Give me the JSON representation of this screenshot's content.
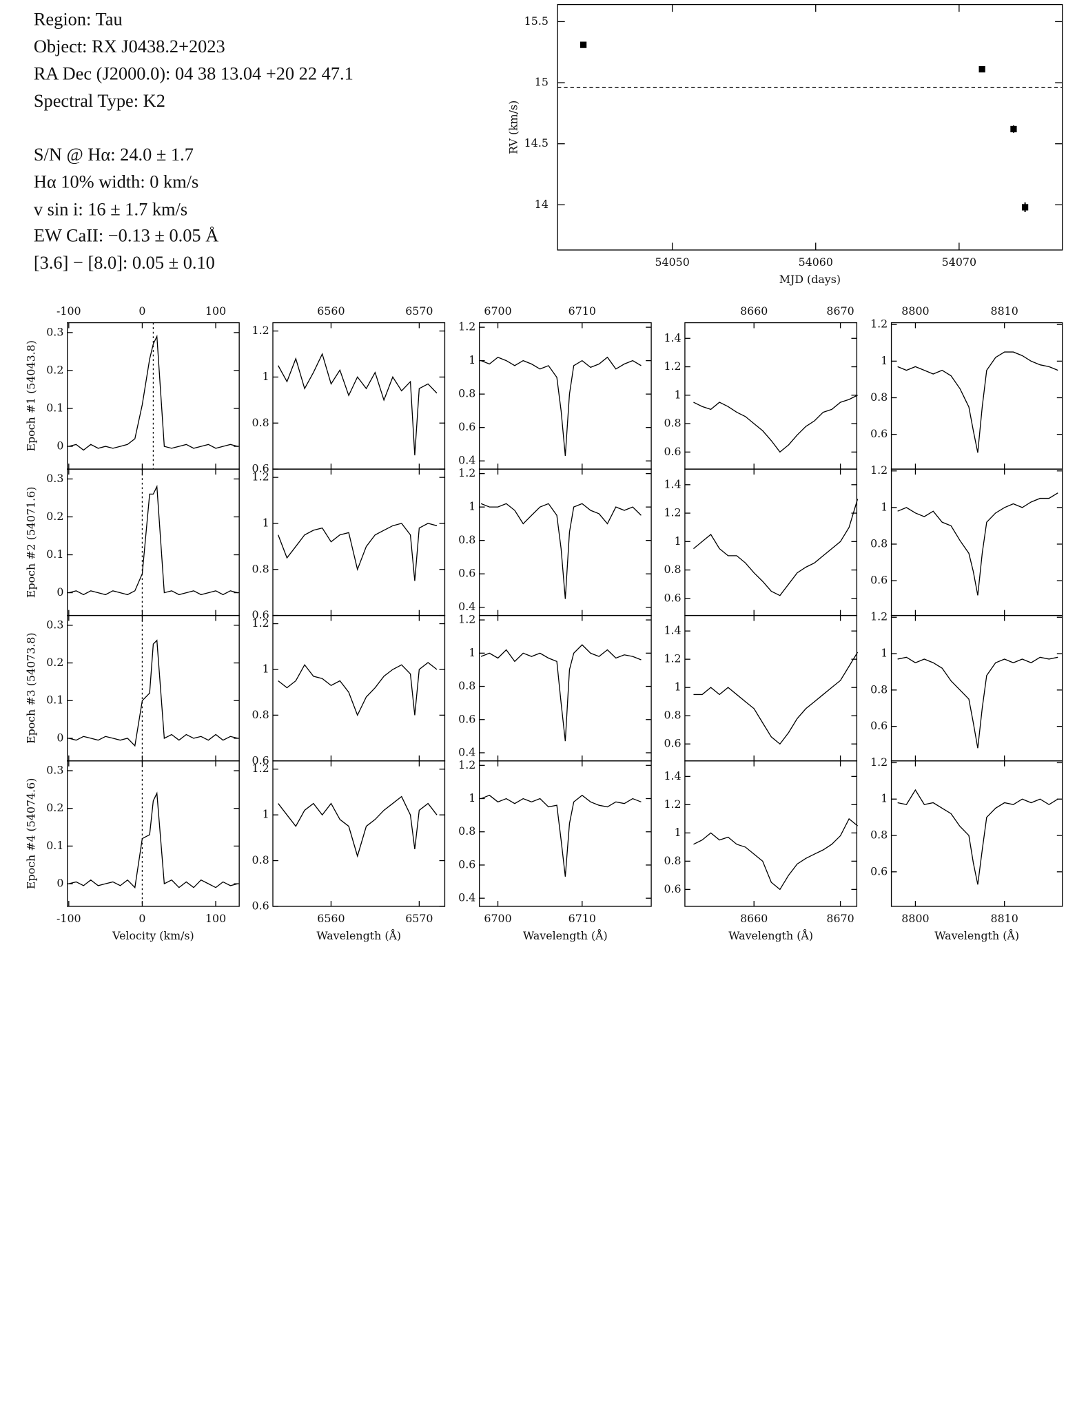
{
  "info": {
    "lines": [
      "Region: Tau",
      "Object: RX J0438.2+2023",
      "RA Dec (J2000.0): 04 38 13.04 +20 22 47.1",
      "Spectral Type: K2",
      "S/N @ Hα: 24.0 ± 1.7",
      "Hα 10% width: 0 km/s",
      "v sin i: 16 ± 1.7 km/s",
      "EW CaII: −0.13 ± 0.05 Å",
      "[3.6] − [8.0]: 0.05 ± 0.10"
    ]
  },
  "chart_data": [
    {
      "type": "scatter",
      "xlabel": "MJD (days)",
      "ylabel": "RV (km/s)",
      "x": [
        54043.8,
        54071.6,
        54073.8,
        54074.6
      ],
      "values": [
        15.31,
        15.11,
        14.62,
        13.98
      ],
      "errors": [
        0.02,
        0.02,
        0.03,
        0.04
      ],
      "reference_line": 14.96,
      "xlim": [
        54042.0,
        54077.2
      ],
      "xticks": [
        54050,
        54060,
        54070
      ],
      "ylim": [
        13.63,
        15.64
      ],
      "yticks": [
        14,
        14.5,
        15,
        15.5
      ],
      "color": "#000000"
    },
    {
      "type": "line",
      "ylabel": "Epoch #1 (54043.8)",
      "reference_line": 15,
      "x": [
        -100,
        -90,
        -80,
        -70,
        -60,
        -50,
        -40,
        -30,
        -20,
        -10,
        0,
        10,
        15,
        20,
        30,
        40,
        50,
        60,
        70,
        80,
        90,
        100,
        110,
        120,
        130
      ],
      "values": [
        0,
        0.005,
        -0.01,
        0.005,
        -0.005,
        0,
        -0.005,
        0,
        0.005,
        0.02,
        0.11,
        0.23,
        0.27,
        0.29,
        0,
        -0.005,
        0,
        0.005,
        -0.005,
        0,
        0.005,
        -0.005,
        0,
        0.005,
        0
      ],
      "xlim": [
        -102,
        132
      ],
      "xticks": [
        -100,
        0,
        100
      ],
      "ylim": [
        -0.06,
        0.326
      ],
      "yticks": [
        0,
        0.1,
        0.2,
        0.3
      ]
    },
    {
      "type": "line",
      "x": [
        6554,
        6555,
        6556,
        6557,
        6558,
        6559,
        6560,
        6561,
        6562,
        6563,
        6564,
        6565,
        6566,
        6567,
        6568,
        6569,
        6569.5,
        6570,
        6571,
        6572
      ],
      "values": [
        1.05,
        0.98,
        1.08,
        0.95,
        1.02,
        1.1,
        0.97,
        1.03,
        0.92,
        1.0,
        0.95,
        1.02,
        0.9,
        1.0,
        0.94,
        0.98,
        0.66,
        0.95,
        0.97,
        0.93
      ],
      "xlim": [
        6553.4,
        6572.9
      ],
      "xticks": [
        6560,
        6570
      ],
      "ylim": [
        0.6,
        1.236
      ],
      "yticks": [
        0.6,
        0.8,
        1,
        1.2
      ]
    },
    {
      "type": "line",
      "x": [
        6698,
        6699,
        6700,
        6701,
        6702,
        6703,
        6704,
        6705,
        6706,
        6707,
        6707.5,
        6708,
        6708.5,
        6709,
        6710,
        6711,
        6712,
        6713,
        6714,
        6715,
        6716,
        6717
      ],
      "values": [
        1.0,
        0.98,
        1.02,
        1.0,
        0.97,
        1.0,
        0.98,
        0.95,
        0.97,
        0.9,
        0.7,
        0.43,
        0.8,
        0.97,
        1.0,
        0.96,
        0.98,
        1.02,
        0.95,
        0.98,
        1.0,
        0.97
      ],
      "xlim": [
        6697.8,
        6718.2
      ],
      "xticks": [
        6700,
        6710
      ],
      "ylim": [
        0.351,
        1.227
      ],
      "yticks": [
        0.4,
        0.6,
        0.8,
        1,
        1.2
      ]
    },
    {
      "type": "line",
      "x": [
        8653,
        8654,
        8655,
        8656,
        8657,
        8658,
        8659,
        8660,
        8661,
        8662,
        8663,
        8664,
        8665,
        8666,
        8667,
        8668,
        8669,
        8670,
        8671,
        8672
      ],
      "values": [
        0.95,
        0.92,
        0.9,
        0.95,
        0.92,
        0.88,
        0.85,
        0.8,
        0.75,
        0.68,
        0.6,
        0.65,
        0.72,
        0.78,
        0.82,
        0.88,
        0.9,
        0.95,
        0.97,
        1.0
      ],
      "xlim": [
        8652.0,
        8671.9
      ],
      "xticks": [
        8660,
        8670
      ],
      "ylim": [
        0.48,
        1.51
      ],
      "yticks": [
        0.6,
        0.8,
        1,
        1.2,
        1.4
      ]
    },
    {
      "type": "line",
      "x": [
        8798,
        8799,
        8800,
        8801,
        8802,
        8803,
        8804,
        8805,
        8806,
        8806.5,
        8807,
        8807.5,
        8808,
        8809,
        8810,
        8811,
        8812,
        8813,
        8814,
        8815,
        8816
      ],
      "values": [
        0.97,
        0.95,
        0.97,
        0.95,
        0.93,
        0.95,
        0.92,
        0.85,
        0.75,
        0.62,
        0.5,
        0.75,
        0.95,
        1.02,
        1.05,
        1.05,
        1.03,
        1.0,
        0.98,
        0.97,
        0.95
      ],
      "xlim": [
        8797.3,
        8816.5
      ],
      "xticks": [
        8800,
        8810
      ],
      "ylim": [
        0.41,
        1.21
      ],
      "yticks": [
        0.6,
        0.8,
        1,
        1.2
      ]
    },
    {
      "type": "line",
      "ylabel": "Epoch #2 (54071.6)",
      "reference_line": 0,
      "x": [
        -100,
        -90,
        -80,
        -70,
        -60,
        -50,
        -40,
        -30,
        -20,
        -10,
        0,
        10,
        15,
        20,
        30,
        40,
        50,
        60,
        70,
        80,
        90,
        100,
        110,
        120,
        130
      ],
      "values": [
        0,
        0.005,
        -0.005,
        0.005,
        0,
        -0.005,
        0.005,
        0,
        -0.005,
        0.005,
        0.05,
        0.26,
        0.26,
        0.28,
        0,
        0.005,
        -0.005,
        0,
        0.005,
        -0.005,
        0,
        0.005,
        -0.005,
        0.005,
        0
      ],
      "xlim": [
        -102,
        132
      ],
      "xticks": [
        -100,
        0,
        100
      ],
      "ylim": [
        -0.06,
        0.326
      ],
      "yticks": [
        0,
        0.1,
        0.2,
        0.3
      ]
    },
    {
      "type": "line",
      "x": [
        6554,
        6555,
        6556,
        6557,
        6558,
        6559,
        6560,
        6561,
        6562,
        6563,
        6564,
        6565,
        6566,
        6567,
        6568,
        6569,
        6569.5,
        6570,
        6571,
        6572
      ],
      "values": [
        0.95,
        0.85,
        0.9,
        0.95,
        0.97,
        0.98,
        0.92,
        0.95,
        0.96,
        0.8,
        0.9,
        0.95,
        0.97,
        0.99,
        1.0,
        0.95,
        0.75,
        0.98,
        1.0,
        0.99
      ],
      "xlim": [
        6553.4,
        6572.9
      ],
      "xticks": [
        6560,
        6570
      ],
      "ylim": [
        0.6,
        1.236
      ],
      "yticks": [
        0.6,
        0.8,
        1,
        1.2
      ]
    },
    {
      "type": "line",
      "x": [
        6698,
        6699,
        6700,
        6701,
        6702,
        6703,
        6704,
        6705,
        6706,
        6707,
        6707.5,
        6708,
        6708.5,
        6709,
        6710,
        6711,
        6712,
        6713,
        6714,
        6715,
        6716,
        6717
      ],
      "values": [
        1.02,
        1.0,
        1.0,
        1.02,
        0.98,
        0.9,
        0.95,
        1.0,
        1.02,
        0.95,
        0.75,
        0.45,
        0.85,
        1.0,
        1.02,
        0.98,
        0.96,
        0.9,
        1.0,
        0.98,
        1.0,
        0.95
      ],
      "xlim": [
        6697.8,
        6718.2
      ],
      "xticks": [
        6700,
        6710
      ],
      "ylim": [
        0.351,
        1.227
      ],
      "yticks": [
        0.4,
        0.6,
        0.8,
        1,
        1.2
      ]
    },
    {
      "type": "line",
      "x": [
        8653,
        8654,
        8655,
        8656,
        8657,
        8658,
        8659,
        8660,
        8661,
        8662,
        8663,
        8664,
        8665,
        8666,
        8667,
        8668,
        8669,
        8670,
        8671,
        8672
      ],
      "values": [
        0.95,
        1.0,
        1.05,
        0.95,
        0.9,
        0.9,
        0.85,
        0.78,
        0.72,
        0.65,
        0.62,
        0.7,
        0.78,
        0.82,
        0.85,
        0.9,
        0.95,
        1.0,
        1.1,
        1.3
      ],
      "xlim": [
        8652.0,
        8671.9
      ],
      "xticks": [
        8660,
        8670
      ],
      "ylim": [
        0.48,
        1.51
      ],
      "yticks": [
        0.6,
        0.8,
        1,
        1.2,
        1.4
      ]
    },
    {
      "type": "line",
      "x": [
        8798,
        8799,
        8800,
        8801,
        8802,
        8803,
        8804,
        8805,
        8806,
        8806.5,
        8807,
        8807.5,
        8808,
        8809,
        8810,
        8811,
        8812,
        8813,
        8814,
        8815,
        8816
      ],
      "values": [
        0.98,
        1.0,
        0.97,
        0.95,
        0.98,
        0.92,
        0.9,
        0.82,
        0.75,
        0.65,
        0.52,
        0.75,
        0.92,
        0.97,
        1.0,
        1.02,
        1.0,
        1.03,
        1.05,
        1.05,
        1.08
      ],
      "xlim": [
        8797.3,
        8816.5
      ],
      "xticks": [
        8800,
        8810
      ],
      "ylim": [
        0.41,
        1.21
      ],
      "yticks": [
        0.6,
        0.8,
        1,
        1.2
      ]
    },
    {
      "type": "line",
      "ylabel": "Epoch #3 (54073.8)",
      "reference_line": 0,
      "x": [
        -100,
        -90,
        -80,
        -70,
        -60,
        -50,
        -40,
        -30,
        -20,
        -10,
        0,
        10,
        15,
        20,
        30,
        40,
        50,
        60,
        70,
        80,
        90,
        100,
        110,
        120,
        130
      ],
      "values": [
        0,
        -0.005,
        0.005,
        0,
        -0.005,
        0.005,
        0,
        -0.005,
        0,
        -0.02,
        0.1,
        0.12,
        0.25,
        0.26,
        0,
        0.01,
        -0.005,
        0.01,
        0,
        0.005,
        -0.005,
        0.01,
        -0.005,
        0.005,
        0
      ],
      "xlim": [
        -102,
        132
      ],
      "xticks": [
        -100,
        0,
        100
      ],
      "ylim": [
        -0.06,
        0.326
      ],
      "yticks": [
        0,
        0.1,
        0.2,
        0.3
      ]
    },
    {
      "type": "line",
      "x": [
        6554,
        6555,
        6556,
        6557,
        6558,
        6559,
        6560,
        6561,
        6562,
        6563,
        6564,
        6565,
        6566,
        6567,
        6568,
        6569,
        6569.5,
        6570,
        6571,
        6572
      ],
      "values": [
        0.95,
        0.92,
        0.95,
        1.02,
        0.97,
        0.96,
        0.93,
        0.95,
        0.9,
        0.8,
        0.88,
        0.92,
        0.97,
        1.0,
        1.02,
        0.98,
        0.8,
        1.0,
        1.03,
        1.0
      ],
      "xlim": [
        6553.4,
        6572.9
      ],
      "xticks": [
        6560,
        6570
      ],
      "ylim": [
        0.6,
        1.236
      ],
      "yticks": [
        0.6,
        0.8,
        1,
        1.2
      ]
    },
    {
      "type": "line",
      "x": [
        6698,
        6699,
        6700,
        6701,
        6702,
        6703,
        6704,
        6705,
        6706,
        6707,
        6707.5,
        6708,
        6708.5,
        6709,
        6710,
        6711,
        6712,
        6713,
        6714,
        6715,
        6716,
        6717
      ],
      "values": [
        0.98,
        1.0,
        0.97,
        1.02,
        0.95,
        1.0,
        0.98,
        1.0,
        0.97,
        0.95,
        0.7,
        0.47,
        0.9,
        1.0,
        1.05,
        1.0,
        0.98,
        1.02,
        0.97,
        0.99,
        0.98,
        0.96
      ],
      "xlim": [
        6697.8,
        6718.2
      ],
      "xticks": [
        6700,
        6710
      ],
      "ylim": [
        0.351,
        1.227
      ],
      "yticks": [
        0.4,
        0.6,
        0.8,
        1,
        1.2
      ]
    },
    {
      "type": "line",
      "x": [
        8653,
        8654,
        8655,
        8656,
        8657,
        8658,
        8659,
        8660,
        8661,
        8662,
        8663,
        8664,
        8665,
        8666,
        8667,
        8668,
        8669,
        8670,
        8671,
        8672
      ],
      "values": [
        0.95,
        0.95,
        1.0,
        0.95,
        1.0,
        0.95,
        0.9,
        0.85,
        0.75,
        0.65,
        0.6,
        0.68,
        0.78,
        0.85,
        0.9,
        0.95,
        1.0,
        1.05,
        1.15,
        1.25
      ],
      "xlim": [
        8652.0,
        8671.9
      ],
      "xticks": [
        8660,
        8670
      ],
      "ylim": [
        0.48,
        1.51
      ],
      "yticks": [
        0.6,
        0.8,
        1,
        1.2,
        1.4
      ]
    },
    {
      "type": "line",
      "x": [
        8798,
        8799,
        8800,
        8801,
        8802,
        8803,
        8804,
        8805,
        8806,
        8806.5,
        8807,
        8807.5,
        8808,
        8809,
        8810,
        8811,
        8812,
        8813,
        8814,
        8815,
        8816
      ],
      "values": [
        0.97,
        0.98,
        0.95,
        0.97,
        0.95,
        0.92,
        0.85,
        0.8,
        0.75,
        0.62,
        0.48,
        0.7,
        0.88,
        0.95,
        0.97,
        0.95,
        0.97,
        0.95,
        0.98,
        0.97,
        0.98
      ],
      "xlim": [
        8797.3,
        8816.5
      ],
      "xticks": [
        8800,
        8810
      ],
      "ylim": [
        0.41,
        1.21
      ],
      "yticks": [
        0.6,
        0.8,
        1,
        1.2
      ]
    },
    {
      "type": "line",
      "ylabel": "Epoch #4 (54074.6)",
      "xlabel": "Velocity (km/s)",
      "reference_line": 0,
      "x": [
        -100,
        -90,
        -80,
        -70,
        -60,
        -50,
        -40,
        -30,
        -20,
        -10,
        0,
        10,
        15,
        20,
        30,
        40,
        50,
        60,
        70,
        80,
        90,
        100,
        110,
        120,
        130
      ],
      "values": [
        0,
        0.005,
        -0.005,
        0.01,
        -0.005,
        0,
        0.005,
        -0.005,
        0.01,
        -0.01,
        0.12,
        0.13,
        0.22,
        0.24,
        0,
        0.01,
        -0.01,
        0.005,
        -0.01,
        0.01,
        0,
        -0.01,
        0.005,
        -0.005,
        0
      ],
      "xlim": [
        -102,
        132
      ],
      "xticks": [
        -100,
        0,
        100
      ],
      "ylim": [
        -0.06,
        0.326
      ],
      "yticks": [
        0,
        0.1,
        0.2,
        0.3
      ]
    },
    {
      "type": "line",
      "xlabel": "Wavelength (Å)",
      "x": [
        6554,
        6555,
        6556,
        6557,
        6558,
        6559,
        6560,
        6561,
        6562,
        6563,
        6564,
        6565,
        6566,
        6567,
        6568,
        6569,
        6569.5,
        6570,
        6571,
        6572
      ],
      "values": [
        1.05,
        1.0,
        0.95,
        1.02,
        1.05,
        1.0,
        1.05,
        0.98,
        0.95,
        0.82,
        0.95,
        0.98,
        1.02,
        1.05,
        1.08,
        1.0,
        0.85,
        1.02,
        1.05,
        1.0
      ],
      "xlim": [
        6553.4,
        6572.9
      ],
      "xticks": [
        6560,
        6570
      ],
      "ylim": [
        0.6,
        1.236
      ],
      "yticks": [
        0.6,
        0.8,
        1,
        1.2
      ]
    },
    {
      "type": "line",
      "xlabel": "Wavelength (Å)",
      "x": [
        6698,
        6699,
        6700,
        6701,
        6702,
        6703,
        6704,
        6705,
        6706,
        6707,
        6707.5,
        6708,
        6708.5,
        6709,
        6710,
        6711,
        6712,
        6713,
        6714,
        6715,
        6716,
        6717
      ],
      "values": [
        1.0,
        1.02,
        0.98,
        1.0,
        0.97,
        1.0,
        0.98,
        1.0,
        0.95,
        0.96,
        0.75,
        0.53,
        0.85,
        0.98,
        1.02,
        0.98,
        0.96,
        0.95,
        0.98,
        0.97,
        1.0,
        0.98
      ],
      "xlim": [
        6697.8,
        6718.2
      ],
      "xticks": [
        6700,
        6710
      ],
      "ylim": [
        0.351,
        1.227
      ],
      "yticks": [
        0.4,
        0.6,
        0.8,
        1,
        1.2
      ]
    },
    {
      "type": "line",
      "xlabel": "Wavelength (Å)",
      "x": [
        8653,
        8654,
        8655,
        8656,
        8657,
        8658,
        8659,
        8660,
        8661,
        8662,
        8663,
        8664,
        8665,
        8666,
        8667,
        8668,
        8669,
        8670,
        8671,
        8672
      ],
      "values": [
        0.92,
        0.95,
        1.0,
        0.95,
        0.97,
        0.92,
        0.9,
        0.85,
        0.8,
        0.65,
        0.6,
        0.7,
        0.78,
        0.82,
        0.85,
        0.88,
        0.92,
        0.98,
        1.1,
        1.05
      ],
      "xlim": [
        8652.0,
        8671.9
      ],
      "xticks": [
        8660,
        8670
      ],
      "ylim": [
        0.48,
        1.51
      ],
      "yticks": [
        0.6,
        0.8,
        1,
        1.2,
        1.4
      ]
    },
    {
      "type": "line",
      "xlabel": "Wavelength (Å)",
      "x": [
        8798,
        8799,
        8800,
        8801,
        8802,
        8803,
        8804,
        8805,
        8806,
        8806.5,
        8807,
        8807.5,
        8808,
        8809,
        8810,
        8811,
        8812,
        8813,
        8814,
        8815,
        8816
      ],
      "values": [
        0.98,
        0.97,
        1.05,
        0.97,
        0.98,
        0.95,
        0.92,
        0.85,
        0.8,
        0.65,
        0.53,
        0.72,
        0.9,
        0.95,
        0.98,
        0.97,
        1.0,
        0.98,
        1.0,
        0.97,
        1.0
      ],
      "xlim": [
        8797.3,
        8816.5
      ],
      "xticks": [
        8800,
        8810
      ],
      "ylim": [
        0.41,
        1.21
      ],
      "yticks": [
        0.6,
        0.8,
        1,
        1.2
      ]
    }
  ]
}
